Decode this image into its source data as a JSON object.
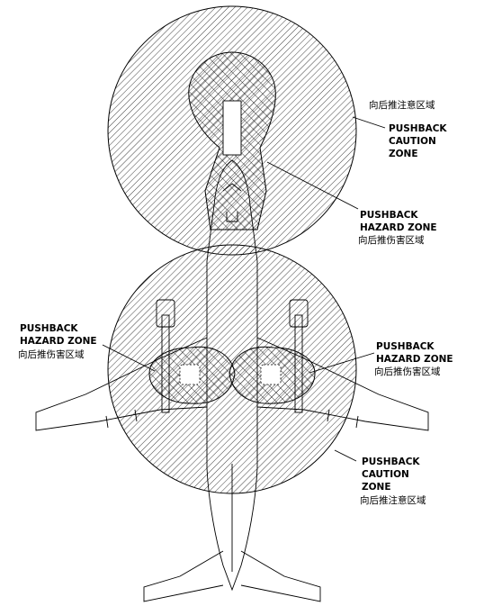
{
  "labels": {
    "caution_top": {
      "line1": "向后推注意区域",
      "line2": "PUSHBACK",
      "line3": "CAUTION",
      "line4": "ZONE"
    },
    "hazard_nose": {
      "line1": "PUSHBACK",
      "line2": "HAZARD ZONE",
      "line3": "向后推伤害区域"
    },
    "hazard_left_engine": {
      "line1": "PUSHBACK",
      "line2": "HAZARD ZONE",
      "line3": "向后推伤害区域"
    },
    "hazard_right_engine": {
      "line1": "PUSHBACK",
      "line2": "HAZARD ZONE",
      "line3": "向后推伤害区域"
    },
    "caution_bottom": {
      "line1": "PUSHBACK",
      "line2": "CAUTION",
      "line3": "ZONE",
      "line4": "向后推注意区域"
    }
  },
  "colors": {
    "line": "#000000",
    "background": "#ffffff"
  }
}
